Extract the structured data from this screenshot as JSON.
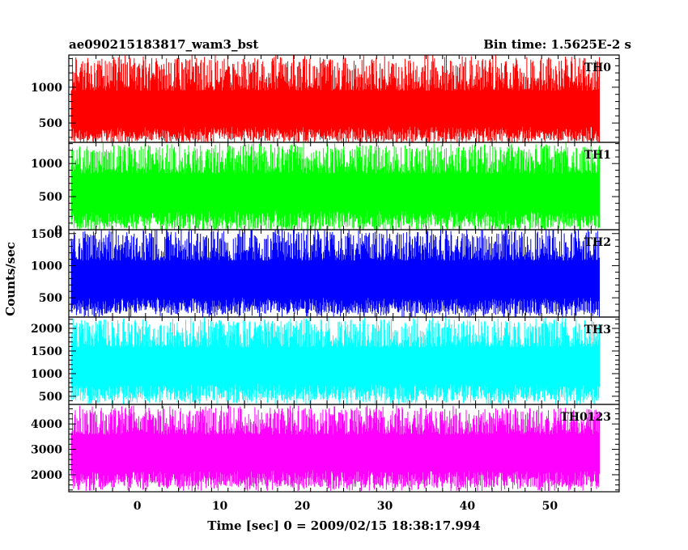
{
  "header": {
    "left_title": "ae090215183817_wam3_bst",
    "right_title": "Bin time: 1.5625E-2 s"
  },
  "axes": {
    "xlabel": "Time [sec] 0 = 2009/02/15 18:38:17.994",
    "ylabel": "Counts/sec"
  },
  "chart_data": [
    {
      "type": "line",
      "name": "TH0",
      "color": "#ff0000",
      "xlim": [
        -8.3,
        58.4
      ],
      "ylim": [
        230,
        1450
      ],
      "yticks": [
        500,
        1000
      ],
      "data_x_range": [
        -8,
        56
      ],
      "approx_mean": 700,
      "approx_range": [
        250,
        1420
      ]
    },
    {
      "type": "line",
      "name": "TH1",
      "color": "#00ff00",
      "xlim": [
        -8.3,
        58.4
      ],
      "ylim": [
        0,
        1320
      ],
      "yticks": [
        0,
        500,
        1000
      ],
      "data_x_range": [
        -8,
        56
      ],
      "approx_mean": 620,
      "approx_range": [
        20,
        1280
      ]
    },
    {
      "type": "line",
      "name": "TH2",
      "color": "#0000ff",
      "xlim": [
        -8.3,
        58.4
      ],
      "ylim": [
        200,
        1560
      ],
      "yticks": [
        500,
        1000,
        1500
      ],
      "data_x_range": [
        -8,
        56
      ],
      "approx_mean": 820,
      "approx_range": [
        250,
        1560
      ]
    },
    {
      "type": "line",
      "name": "TH3",
      "color": "#00ffff",
      "xlim": [
        -8.3,
        58.4
      ],
      "ylim": [
        320,
        2250
      ],
      "yticks": [
        500,
        1000,
        1500,
        2000
      ],
      "data_x_range": [
        -8,
        56
      ],
      "approx_mean": 1250,
      "approx_range": [
        400,
        2200
      ]
    },
    {
      "type": "line",
      "name": "TH0123",
      "color": "#ff00ff",
      "xlim": [
        -8.3,
        58.4
      ],
      "ylim": [
        1330,
        4770
      ],
      "yticks": [
        2000,
        3000,
        4000
      ],
      "data_x_range": [
        -8,
        56
      ],
      "approx_mean": 3000,
      "approx_range": [
        1500,
        4650
      ]
    }
  ],
  "x_axis": {
    "ticks": [
      0,
      10,
      20,
      30,
      40,
      50
    ],
    "tick_labels": [
      "0",
      "10",
      "20",
      "30",
      "40",
      "50"
    ]
  }
}
